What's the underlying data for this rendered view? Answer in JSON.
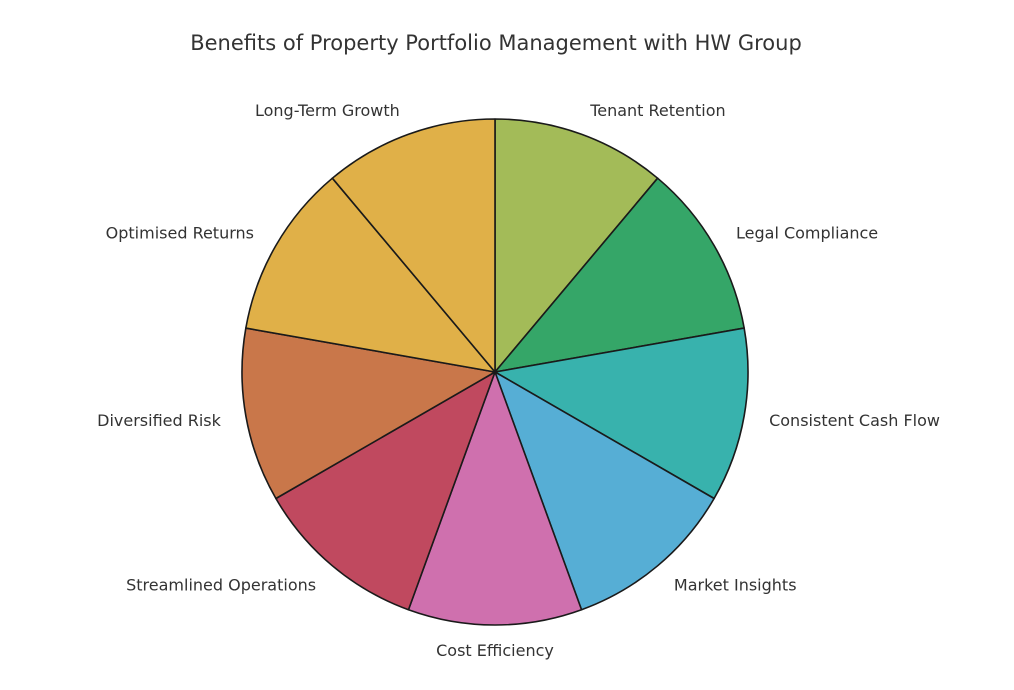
{
  "chart_data": {
    "type": "pie",
    "title": "Benefits of Property Portfolio Management with HW Group",
    "start_angle_deg": 90,
    "direction": "clockwise",
    "legend": "none",
    "slices": [
      {
        "label": "Tenant Retention",
        "value": 1,
        "color": "#a3bb58"
      },
      {
        "label": "Legal Compliance",
        "value": 1,
        "color": "#35a668"
      },
      {
        "label": "Consistent Cash Flow",
        "value": 1,
        "color": "#38b2ad"
      },
      {
        "label": "Market Insights",
        "value": 1,
        "color": "#56aed5"
      },
      {
        "label": "Cost Efficiency",
        "value": 1,
        "color": "#cf70ae"
      },
      {
        "label": "Streamlined Operations",
        "value": 1,
        "color": "#c0495f"
      },
      {
        "label": "Diversified Risk",
        "value": 1,
        "color": "#c9774a"
      },
      {
        "label": "Optimised Returns",
        "value": 1,
        "color": "#e0b048"
      },
      {
        "label": "Long-Term Growth",
        "value": 1,
        "color": "#e0b048"
      }
    ]
  }
}
